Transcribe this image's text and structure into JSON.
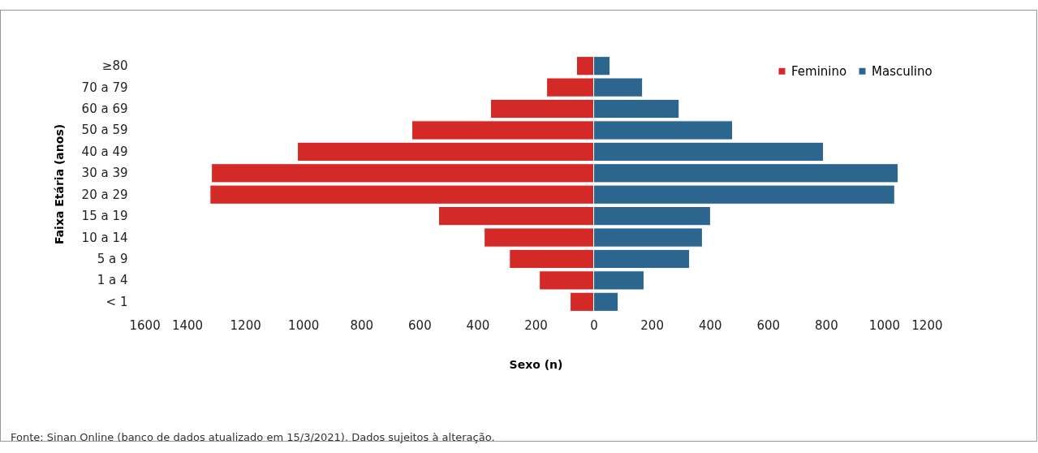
{
  "chart_data": {
    "type": "bar",
    "orientation": "horizontal",
    "xlabel": "Sexo (n)",
    "ylabel": "Faixa Etária (anos)",
    "categories": [
      "≥80",
      "70 a 79",
      "60 a 69",
      "50 a 59",
      "40 a 49",
      "30 a 39",
      "20 a 29",
      "15 a 19",
      "10 a 14",
      "5 a 9",
      "1 a 4",
      "< 1"
    ],
    "series": [
      {
        "name": "Feminino",
        "color": "#d42a27",
        "values": [
          -59,
          -162,
          -355,
          -626,
          -1020,
          -1316,
          -1321,
          -534,
          -377,
          -290,
          -187,
          -81
        ]
      },
      {
        "name": "Masculino",
        "color": "#2c668f",
        "values": [
          56,
          168,
          294,
          478,
          791,
          1048,
          1036,
          402,
          374,
          330,
          173,
          84
        ]
      }
    ],
    "xlim": [
      -1600,
      1200
    ],
    "xticks": [
      {
        "value": -1600,
        "label": "1600"
      },
      {
        "value": -1400,
        "label": "1400"
      },
      {
        "value": -1200,
        "label": "1200"
      },
      {
        "value": -1000,
        "label": "1000"
      },
      {
        "value": -800,
        "label": "800"
      },
      {
        "value": -600,
        "label": "600"
      },
      {
        "value": -400,
        "label": "400"
      },
      {
        "value": -200,
        "label": "200"
      },
      0,
      200,
      400,
      600,
      800,
      1000,
      1200
    ],
    "grid": false,
    "legend": "top right",
    "stacked": true,
    "annotations": [
      "Fonte: Sinan Online (banco de dados atualizado em 15/3/2021). Dados sujeitos à alteração."
    ]
  }
}
